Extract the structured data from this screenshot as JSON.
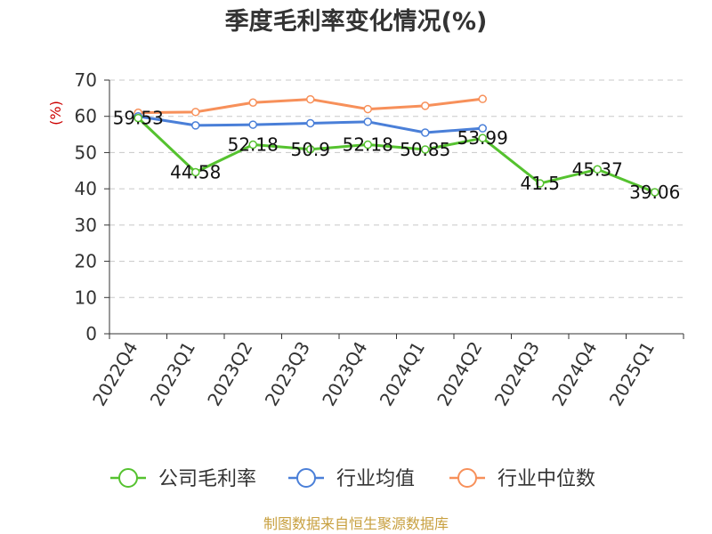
{
  "chart_data": {
    "type": "line",
    "title": "季度毛利率变化情况(%)",
    "ylabel": "(%)",
    "xlabel": "",
    "ylim": [
      0,
      70
    ],
    "yticks": [
      0,
      10,
      20,
      30,
      40,
      50,
      60,
      70
    ],
    "grid": true,
    "legend_position": "bottom",
    "categories": [
      "2022Q4",
      "2023Q1",
      "2023Q2",
      "2023Q3",
      "2023Q4",
      "2024Q1",
      "2024Q2",
      "2024Q3",
      "2024Q4",
      "2025Q1"
    ],
    "series": [
      {
        "name": "公司毛利率",
        "color": "#55c22f",
        "values": [
          59.53,
          44.58,
          52.18,
          50.9,
          52.18,
          50.85,
          53.99,
          41.5,
          45.37,
          39.06
        ],
        "labels": [
          "59.53",
          "44.58",
          "52.18",
          "50.9",
          "52.18",
          "50.85",
          "53.99",
          "41.5",
          "45.37",
          "39.06"
        ]
      },
      {
        "name": "行业均值",
        "color": "#4a7fd8",
        "values": [
          60.0,
          57.5,
          57.7,
          58.1,
          58.5,
          55.5,
          56.7,
          null,
          null,
          null
        ]
      },
      {
        "name": "行业中位数",
        "color": "#f7905a",
        "values": [
          61.0,
          61.2,
          63.8,
          64.7,
          62.0,
          62.9,
          64.8,
          null,
          null,
          null
        ]
      }
    ]
  },
  "source_text": "制图数据来自恒生聚源数据库"
}
